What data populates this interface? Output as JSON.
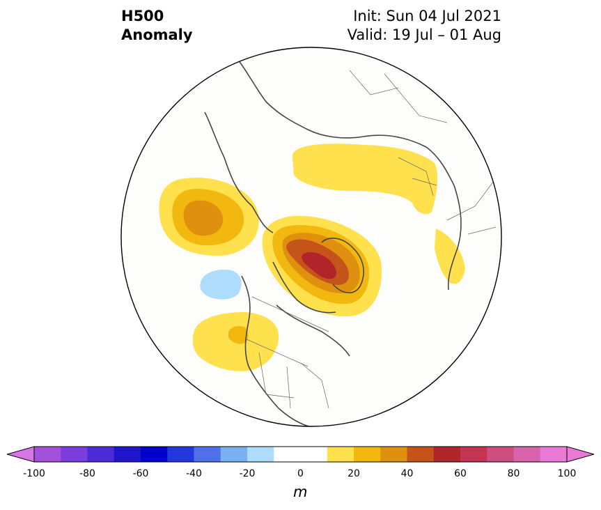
{
  "title": {
    "field_line1": "H500",
    "field_line2": "Anomaly",
    "init": "Init: Sun 04 Jul 2021",
    "valid": "Valid: 19 Jul – 01 Aug"
  },
  "map": {
    "projection": "north-polar-stereographic",
    "region": "Northern Hemisphere (North America / Arctic / Siberia)",
    "features": [
      {
        "name": "positive anomaly over Greenland / Canadian Arctic Archipelago",
        "level": "50-60 m"
      },
      {
        "name": "positive anomaly over NE Pacific / Gulf of Alaska",
        "level": "30-40 m"
      },
      {
        "name": "positive anomaly over northern Siberia",
        "level": "10-20 m"
      },
      {
        "name": "positive anomaly over US Pacific Northwest",
        "level": "20-30 m"
      },
      {
        "name": "positive anomaly over Scandinavia",
        "level": "10-20 m"
      },
      {
        "name": "negative anomaly off British Columbia coast",
        "level": "-20 to -10 m"
      }
    ]
  },
  "colorbar": {
    "unit": "m",
    "min": -100,
    "max": 100,
    "step": 10,
    "extend": "both",
    "tick_labels": [
      "-100",
      "-80",
      "-60",
      "-40",
      "-20",
      "0",
      "20",
      "40",
      "60",
      "80",
      "100"
    ],
    "colors": [
      "#a350da",
      "#7b3ddb",
      "#4a2bd6",
      "#1f16cc",
      "#0000cc",
      "#2238dd",
      "#4f70e8",
      "#7bb0f2",
      "#aedcfc",
      "#ffffff",
      "#ffffff",
      "#ffe14d",
      "#f3b80f",
      "#e0900f",
      "#c4541a",
      "#b0242a",
      "#c33652",
      "#cc4f80",
      "#d764ad",
      "#e97ad6"
    ],
    "under_color": "#d777e6",
    "over_color": "#e97ad6"
  }
}
